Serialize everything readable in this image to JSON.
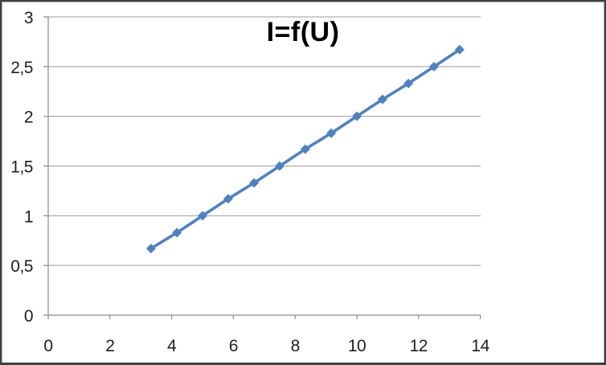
{
  "chart": {
    "title": "I=f(U)"
  },
  "colors": {
    "series": "#4F81BD",
    "gridline": "#9c9c9c",
    "axis": "#898989",
    "tick_label": "#1f1f1f",
    "title": "#000000",
    "background": "#ffffff",
    "frame_outer": "#3f3f3f",
    "frame_inner": "#aeaeae"
  },
  "chart_data": {
    "type": "line",
    "title": "I=f(U)",
    "xlabel": "",
    "ylabel": "",
    "xlim": [
      0,
      14
    ],
    "ylim": [
      0,
      3
    ],
    "x_ticks": [
      0,
      2,
      4,
      6,
      8,
      10,
      12,
      14
    ],
    "x_ticklabels": [
      "0",
      "2",
      "4",
      "6",
      "8",
      "10",
      "12",
      "14"
    ],
    "y_ticks": [
      0,
      0.5,
      1,
      1.5,
      2,
      2.5,
      3
    ],
    "y_ticklabels": [
      "0",
      "0,5",
      "1",
      "1,5",
      "2",
      "2,5",
      "3"
    ],
    "grid": "horizontal-only",
    "legend_position": "none",
    "marker": "diamond",
    "series": [
      {
        "name": "I=f(U)",
        "color": "#4F81BD",
        "x": [
          3.33,
          4.17,
          5,
          5.83,
          6.67,
          7.5,
          8.33,
          9.17,
          10,
          10.83,
          11.67,
          12.5,
          13.33
        ],
        "y": [
          0.67,
          0.83,
          1,
          1.17,
          1.33,
          1.5,
          1.67,
          1.83,
          2,
          2.17,
          2.33,
          2.5,
          2.67
        ]
      }
    ]
  }
}
